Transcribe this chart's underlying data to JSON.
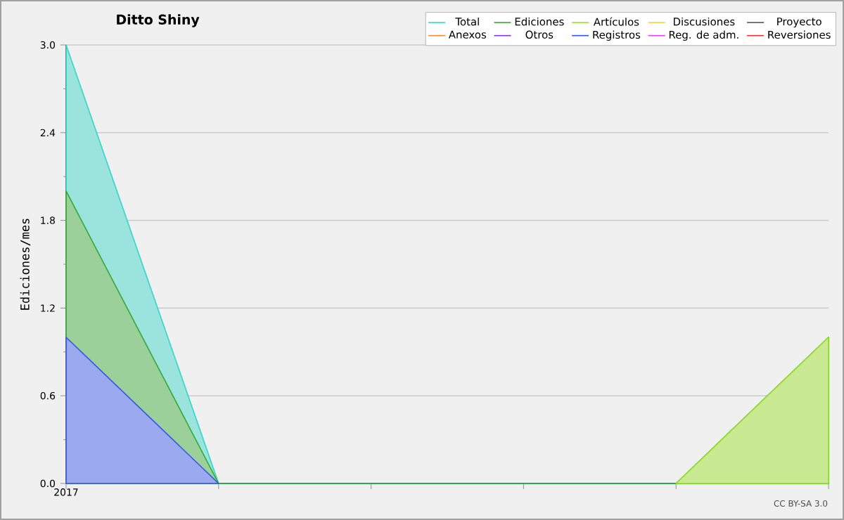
{
  "chart_data": {
    "type": "area",
    "title": "Ditto Shiny",
    "ylabel": "Ediciones/mes",
    "categories": [
      "2017",
      null,
      null,
      null,
      null,
      null
    ],
    "series": [
      {
        "name": "Total",
        "color": "#33d6c8",
        "values": [
          3,
          0,
          0,
          0,
          0,
          1
        ]
      },
      {
        "name": "Ediciones",
        "color": "#33aa33",
        "values": [
          2,
          0,
          0,
          0,
          0,
          1
        ]
      },
      {
        "name": "Artículos",
        "color": "#99e022",
        "values": [
          null,
          null,
          null,
          null,
          0,
          1
        ]
      },
      {
        "name": "Discusiones",
        "color": "#ffcc33",
        "values": [
          null,
          null,
          null,
          null,
          null,
          null
        ]
      },
      {
        "name": "Proyecto",
        "color": "#555555",
        "values": [
          null,
          null,
          null,
          null,
          null,
          null
        ]
      },
      {
        "name": "Anexos",
        "color": "#ff8833",
        "values": [
          null,
          null,
          null,
          null,
          null,
          null
        ]
      },
      {
        "name": "Otros",
        "color": "#8833dd",
        "values": [
          null,
          null,
          null,
          null,
          null,
          null
        ]
      },
      {
        "name": "Registros",
        "color": "#3355ee",
        "values": [
          1,
          0,
          null,
          null,
          null,
          null
        ]
      },
      {
        "name": "Reg. de adm.",
        "color": "#dd44ee",
        "values": [
          null,
          null,
          null,
          null,
          null,
          null
        ]
      },
      {
        "name": "Reversiones",
        "color": "#ee3333",
        "values": [
          null,
          null,
          null,
          null,
          null,
          null
        ]
      }
    ],
    "ylim": [
      0,
      3
    ],
    "yticks": [
      {
        "value": 0,
        "label": "0.0"
      },
      {
        "value": 0.6,
        "label": "0.6"
      },
      {
        "value": 1.2,
        "label": "1.2"
      },
      {
        "value": 1.8,
        "label": "1.8"
      },
      {
        "value": 2.4,
        "label": "2.4"
      },
      {
        "value": 3,
        "label": "3.0"
      }
    ],
    "grid": "y",
    "legend": "top right",
    "annotations": [
      "CC BY-SA 3.0"
    ]
  }
}
